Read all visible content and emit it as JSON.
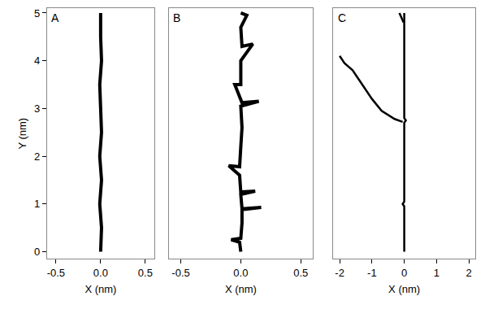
{
  "chart_data": [
    {
      "type": "line",
      "title": "A",
      "x_label": "X (nm)",
      "y_label": "Y (nm)",
      "color": "#000000",
      "x": [
        0,
        0.01,
        -0.01,
        0.01,
        -0.01,
        0.01,
        0,
        -0.01,
        0.01,
        0,
        0
      ],
      "values": [
        0,
        0.5,
        1,
        1.5,
        2,
        2.5,
        3,
        3.5,
        4,
        4.5,
        5
      ],
      "xlim": [
        -0.6,
        0.6
      ],
      "ylim": [
        -0.15,
        5.1
      ],
      "xticks": [
        -0.5,
        {
          "value": 0,
          "label": "0.0"
        },
        0.5
      ],
      "yticks": [
        0,
        1,
        2,
        3,
        4,
        5
      ]
    },
    {
      "type": "line",
      "title": "B",
      "x_label": "X (nm)",
      "color": "#000000",
      "tick_labels": "x",
      "x": [
        0,
        -0.01,
        -0.08,
        0,
        0.01,
        0.01,
        0.17,
        0.01,
        0,
        0.12,
        0,
        -0.01,
        -0.1,
        -0.01,
        0,
        0.01,
        0,
        0.15,
        0.01,
        -0.05,
        0,
        0,
        0.1,
        0.01,
        0,
        0.05,
        0
      ],
      "values": [
        0,
        0.2,
        0.25,
        0.28,
        0.6,
        0.88,
        0.93,
        0.9,
        1.2,
        1.27,
        1.25,
        1.6,
        1.8,
        1.78,
        2.2,
        2.6,
        3.05,
        3.15,
        3.12,
        3.5,
        3.5,
        4.0,
        4.35,
        4.3,
        4.7,
        4.95,
        5
      ],
      "xlim": [
        -0.6,
        0.6
      ],
      "ylim": [
        -0.15,
        5.1
      ],
      "xticks": [
        -0.5,
        {
          "value": 0,
          "label": "0.0"
        },
        0.5
      ]
    },
    {
      "type": "line",
      "title": "C",
      "x_label": "X (nm)",
      "color": "#000000",
      "tick_labels": "x",
      "x": [
        0,
        0,
        -0.05,
        0,
        0,
        0.05,
        0,
        0,
        0,
        null,
        -0.05,
        -0.3,
        -0.7,
        -1.0,
        -1.3,
        -1.6,
        -1.85,
        -2.0,
        null,
        -0.02,
        -0.15
      ],
      "values": [
        0,
        0.95,
        1.0,
        1.05,
        2.7,
        2.75,
        2.8,
        4.9,
        5.0,
        null,
        2.72,
        2.78,
        2.95,
        3.2,
        3.5,
        3.8,
        3.95,
        4.1,
        null,
        4.8,
        5.0
      ],
      "xlim": [
        -2.2,
        2.2
      ],
      "ylim": [
        -0.15,
        5.1
      ],
      "xticks": [
        -2,
        -1,
        0,
        1,
        2
      ]
    }
  ]
}
